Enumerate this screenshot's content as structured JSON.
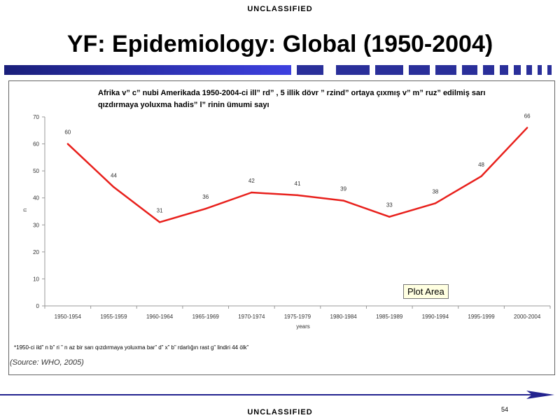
{
  "header": {
    "classification": "UNCLASSIFIED"
  },
  "slide": {
    "title": "YF: Epidemiology: Global (1950-2004)"
  },
  "chart_data": {
    "type": "line",
    "title": "Afrika v” c” nubi Amerikada 1950-2004-ci ill” rd” , 5 illik dövr ” rzind”  ortaya çıxmış v” m” ruz”  edilmiş sarı qızdırmaya yoluxma hadis” l” rinin ümumi sayı",
    "categories": [
      "1950-1954",
      "1955-1959",
      "1960-1964",
      "1965-1969",
      "1970-1974",
      "1975-1979",
      "1980-1984",
      "1985-1989",
      "1990-1994",
      "1995-1999",
      "2000-2004"
    ],
    "values": [
      60,
      44,
      31,
      36,
      42,
      41,
      39,
      33,
      38,
      48,
      66
    ],
    "data_labels": [
      "60",
      "44",
      "31",
      "36",
      "42",
      "41",
      "39",
      "33",
      "38",
      "48",
      "66"
    ],
    "y_ticks": [
      "0",
      "10",
      "20",
      "30",
      "40",
      "50",
      "60",
      "70"
    ],
    "ylim": [
      0,
      70
    ],
    "xlabel": "years",
    "ylabel": "n",
    "line_color": "#e8201c",
    "grid": false,
    "tooltip": "Plot Area",
    "footnote": "*1950-ci ild” n b” ri ” n az bir sarı qızdırmaya yoluxma bar” d” x” b” rdarlığın rast g” lindiri 44 ölk”",
    "source": "(Source: WHO, 2005)"
  },
  "footer": {
    "classification": "UNCLASSIFIED",
    "page_number": "54"
  },
  "colors": {
    "deco_blue": "#1f2a8c",
    "deco_light": "#3b3fd8",
    "accent_line": "#23238f"
  }
}
